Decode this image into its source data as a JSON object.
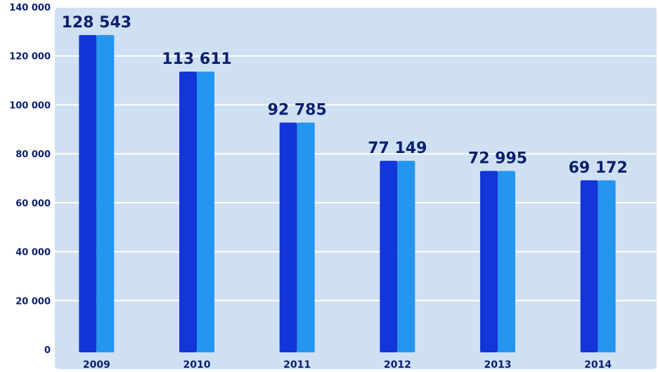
{
  "chart_data": {
    "type": "bar",
    "title": "",
    "xlabel": "",
    "ylabel": "",
    "categories": [
      "2009",
      "2010",
      "2011",
      "2012",
      "2013",
      "2014"
    ],
    "values": [
      128543,
      113611,
      92785,
      77149,
      72995,
      69172
    ],
    "data_labels": [
      "128 543",
      "113 611",
      "92 785",
      "77 149",
      "72 995",
      "69 172"
    ],
    "ylim": [
      0,
      140000
    ],
    "yticks": [
      0,
      20000,
      40000,
      60000,
      80000,
      100000,
      120000,
      140000
    ],
    "ytick_labels": [
      "0",
      "20 000",
      "40 000",
      "60 000",
      "80 000",
      "100 000",
      "120 000",
      "140 000"
    ],
    "grid": true,
    "legend": "none",
    "colors": {
      "plot_background": "#cfe0f3",
      "gridline": "#ffffff",
      "bar_dark": "#1236d8",
      "bar_light": "#2496f0",
      "text": "#0b1f6e"
    }
  }
}
